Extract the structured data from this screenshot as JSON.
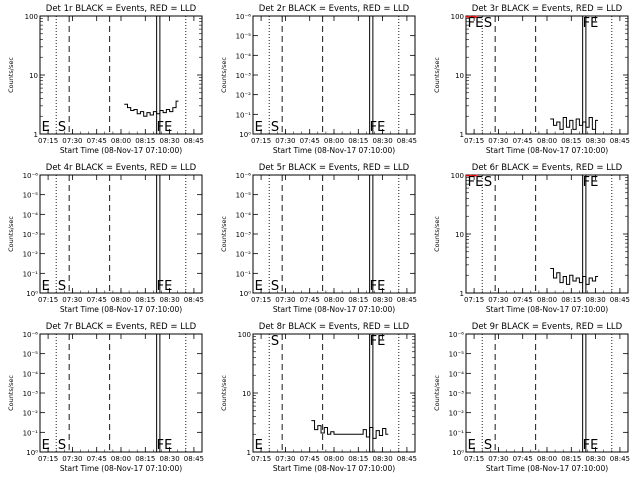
{
  "figure": {
    "xlabel": "Start Time (08-Nov-17 07:10:00)",
    "ylabel": "Counts/sec",
    "colors": {
      "events": "#000000",
      "lld": "#ff0000",
      "background": "#ffffff"
    },
    "x_ticks": [
      "07:15",
      "07:30",
      "07:45",
      "08:00",
      "08:15",
      "08:30",
      "08:45"
    ],
    "x_ticks_min": [
      5,
      20,
      35,
      50,
      65,
      80,
      95
    ],
    "xlim_min": [
      0,
      100
    ],
    "marker_lines": [
      {
        "t": 18,
        "style": "dashed"
      },
      {
        "t": 43,
        "style": "dashed"
      },
      {
        "t": 72,
        "style": "solid"
      },
      {
        "t": 74,
        "style": "solid"
      },
      {
        "t": 90,
        "style": "dotted"
      },
      {
        "t": 10,
        "style": "dotted"
      }
    ]
  },
  "chart_data": [
    {
      "type": "line",
      "title": "Det 1r BLACK = Events, RED = LLD",
      "ylim": [
        1,
        100
      ],
      "yscale": "log",
      "y_ticks": [
        "1",
        "10",
        "100"
      ],
      "letters": [
        {
          "text": "E",
          "t": 1
        },
        {
          "text": "S",
          "t": 11
        },
        {
          "text": "FE",
          "t": 72
        }
      ],
      "series": [
        {
          "name": "Events",
          "x": [
            52,
            54,
            56,
            58,
            60,
            62,
            64,
            66,
            68,
            70,
            72,
            74,
            76,
            78,
            80,
            82,
            84
          ],
          "y": [
            3.2,
            2.8,
            2.5,
            2.6,
            2.2,
            2.4,
            2.0,
            2.3,
            2.1,
            2.4,
            2.2,
            2.5,
            2.3,
            2.6,
            2.4,
            2.8,
            3.6
          ]
        }
      ]
    },
    {
      "type": "line",
      "title": "Det 2r BLACK = Events, RED = LLD",
      "ylim": [
        1,
        1e-06
      ],
      "yscale": "log",
      "y_ticks": [
        "10⁰",
        "10⁻¹",
        "10⁻²",
        "10⁻³",
        "10⁻⁴",
        "10⁻⁵",
        "10⁻⁶"
      ],
      "letters": [
        {
          "text": "E",
          "t": 1
        },
        {
          "text": "S",
          "t": 11
        },
        {
          "text": "FE",
          "t": 72
        }
      ],
      "series": []
    },
    {
      "type": "line",
      "title": "Det 3r BLACK = Events, RED = LLD",
      "ylim": [
        1,
        100
      ],
      "yscale": "log",
      "y_ticks": [
        "1",
        "10",
        "100"
      ],
      "letters": [
        {
          "text": "FE",
          "t": 1
        },
        {
          "text": "S",
          "t": 11
        },
        {
          "text": "FE",
          "t": 72
        }
      ],
      "series": [
        {
          "name": "Events",
          "x": [
            52,
            54,
            56,
            58,
            60,
            62,
            64,
            66,
            68,
            70,
            72,
            74,
            76,
            78,
            80
          ],
          "y": [
            1.8,
            1.4,
            1.6,
            1.2,
            1.9,
            1.3,
            1.7,
            1.2,
            1.8,
            1.4,
            1.6,
            1.3,
            1.9,
            1.2,
            1.7
          ]
        },
        {
          "name": "LLD",
          "x": [
            0,
            1,
            2,
            3,
            4,
            5,
            6
          ],
          "y": [
            98,
            95,
            99,
            96,
            98,
            94,
            99
          ]
        }
      ]
    },
    {
      "type": "line",
      "title": "Det 4r BLACK = Events, RED = LLD",
      "ylim": [
        1,
        1e-06
      ],
      "yscale": "log",
      "y_ticks": [
        "10⁰",
        "10⁻¹",
        "10⁻²",
        "10⁻³",
        "10⁻⁴",
        "10⁻⁵",
        "10⁻⁶"
      ],
      "letters": [
        {
          "text": "E",
          "t": 1
        },
        {
          "text": "S",
          "t": 11
        },
        {
          "text": "FE",
          "t": 72
        }
      ],
      "series": []
    },
    {
      "type": "line",
      "title": "Det 5r BLACK = Events, RED = LLD",
      "ylim": [
        1,
        1e-06
      ],
      "yscale": "log",
      "y_ticks": [
        "10⁰",
        "10⁻¹",
        "10⁻²",
        "10⁻³",
        "10⁻⁴",
        "10⁻⁵",
        "10⁻⁶"
      ],
      "letters": [
        {
          "text": "E",
          "t": 1
        },
        {
          "text": "S",
          "t": 11
        },
        {
          "text": "FE",
          "t": 72
        }
      ],
      "series": []
    },
    {
      "type": "line",
      "title": "Det 6r BLACK = Events, RED = LLD",
      "ylim": [
        1,
        100
      ],
      "yscale": "log",
      "y_ticks": [
        "1",
        "10",
        "100"
      ],
      "letters": [
        {
          "text": "FE",
          "t": 1
        },
        {
          "text": "S",
          "t": 11
        },
        {
          "text": "FE",
          "t": 72
        }
      ],
      "series": [
        {
          "name": "Events",
          "x": [
            52,
            54,
            56,
            58,
            60,
            62,
            64,
            66,
            68,
            70,
            72,
            74,
            76,
            78,
            80
          ],
          "y": [
            2.6,
            1.8,
            2.2,
            1.5,
            1.9,
            1.4,
            2.0,
            1.6,
            1.8,
            1.5,
            1.9,
            1.4,
            1.8,
            1.6,
            1.9
          ]
        },
        {
          "name": "LLD",
          "x": [
            0,
            1,
            2,
            3,
            4,
            5,
            6
          ],
          "y": [
            98,
            96,
            99,
            95,
            98,
            96,
            99
          ]
        }
      ]
    },
    {
      "type": "line",
      "title": "Det 7r BLACK = Events, RED = LLD",
      "ylim": [
        1,
        1e-06
      ],
      "yscale": "log",
      "y_ticks": [
        "10⁰",
        "10⁻¹",
        "10⁻²",
        "10⁻³",
        "10⁻⁴",
        "10⁻⁵",
        "10⁻⁶"
      ],
      "letters": [
        {
          "text": "E",
          "t": 1
        },
        {
          "text": "S",
          "t": 11
        },
        {
          "text": "FE",
          "t": 72
        }
      ],
      "series": []
    },
    {
      "type": "line",
      "title": "Det 8r BLACK = Events, RED = LLD",
      "ylim": [
        1,
        100
      ],
      "yscale": "log",
      "y_ticks": [
        "1",
        "10",
        "100"
      ],
      "letters": [
        {
          "text": "E",
          "t": 1
        },
        {
          "text": "S",
          "t": 11
        },
        {
          "text": "FE",
          "t": 72
        }
      ],
      "series": [
        {
          "name": "Events",
          "x": [
            36,
            38,
            40,
            42,
            44,
            46,
            48,
            50,
            52,
            54,
            56,
            58,
            60,
            62,
            64,
            66,
            68,
            70,
            72,
            74,
            76,
            78,
            80,
            82
          ],
          "y": [
            3.4,
            2.4,
            2.8,
            2.1,
            2.6,
            2.0,
            2.2,
            2.0,
            2.0,
            2.0,
            2.0,
            2.0,
            2.0,
            2.0,
            2.0,
            2.0,
            2.4,
            1.8,
            2.6,
            1.7,
            2.3,
            1.9,
            2.5,
            2.0
          ]
        }
      ]
    },
    {
      "type": "line",
      "title": "Det 9r BLACK = Events, RED = LLD",
      "ylim": [
        1,
        1e-06
      ],
      "yscale": "log",
      "y_ticks": [
        "10⁰",
        "10⁻¹",
        "10⁻²",
        "10⁻³",
        "10⁻⁴",
        "10⁻⁵",
        "10⁻⁶"
      ],
      "letters": [
        {
          "text": "E",
          "t": 1
        },
        {
          "text": "S",
          "t": 11
        },
        {
          "text": "FE",
          "t": 72
        }
      ],
      "series": []
    }
  ]
}
